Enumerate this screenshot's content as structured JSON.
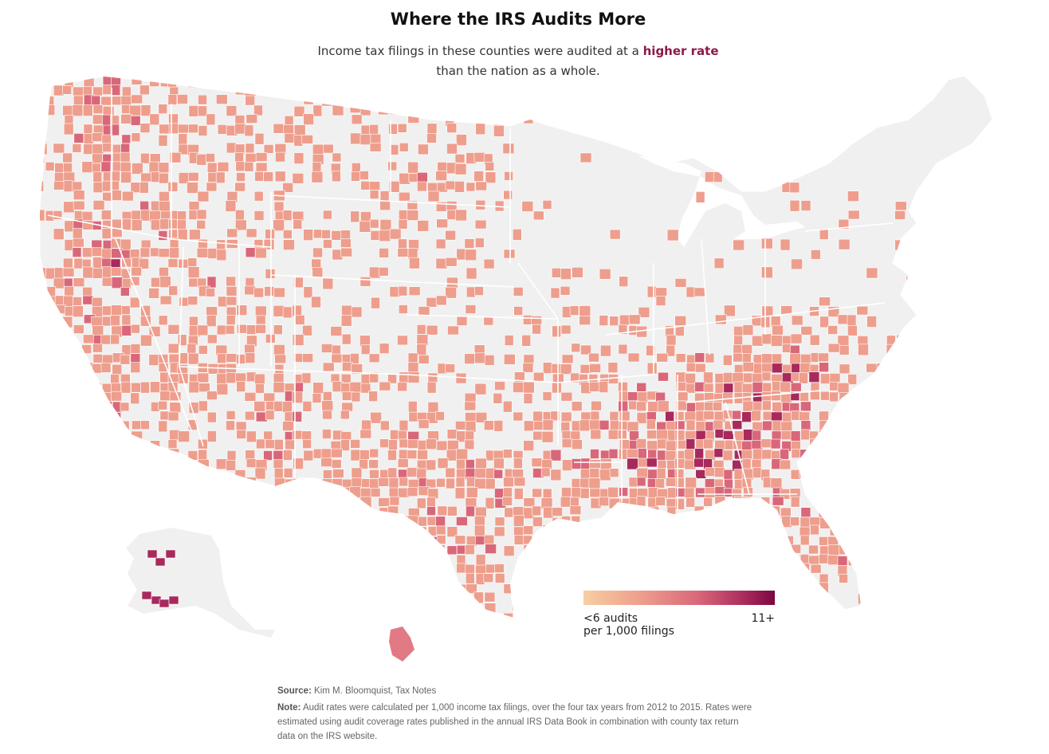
{
  "header": {
    "title": "Where the IRS Audits More",
    "subtitle_before": "Income tax filings in these counties were audited at a ",
    "subtitle_highlight": "higher rate",
    "subtitle_after": "than the nation as a whole."
  },
  "legend": {
    "low_label_line1": "<6 audits",
    "low_label_line2": "per 1,000 filings",
    "high_label": "11+",
    "colors": [
      "#f6cfa1",
      "#ee9e8d",
      "#d9677a",
      "#a8295c",
      "#7d0541"
    ]
  },
  "footer": {
    "source_label": "Source:",
    "source_text": "Kim M. Bloomquist, Tax Notes",
    "note_label": "Note:",
    "note_text": "Audit rates were calculated per 1,000 income tax filings, over the four tax years from 2012 to 2015. Rates were estimated using audit coverage rates published in the annual IRS Data Book in combination with county tax return data on the IRS website."
  },
  "map": {
    "base_fill": "#f0f0f0",
    "border_color": "#ffffff",
    "regions_shown": [
      "contiguous-us",
      "alaska",
      "hawaii"
    ]
  }
}
